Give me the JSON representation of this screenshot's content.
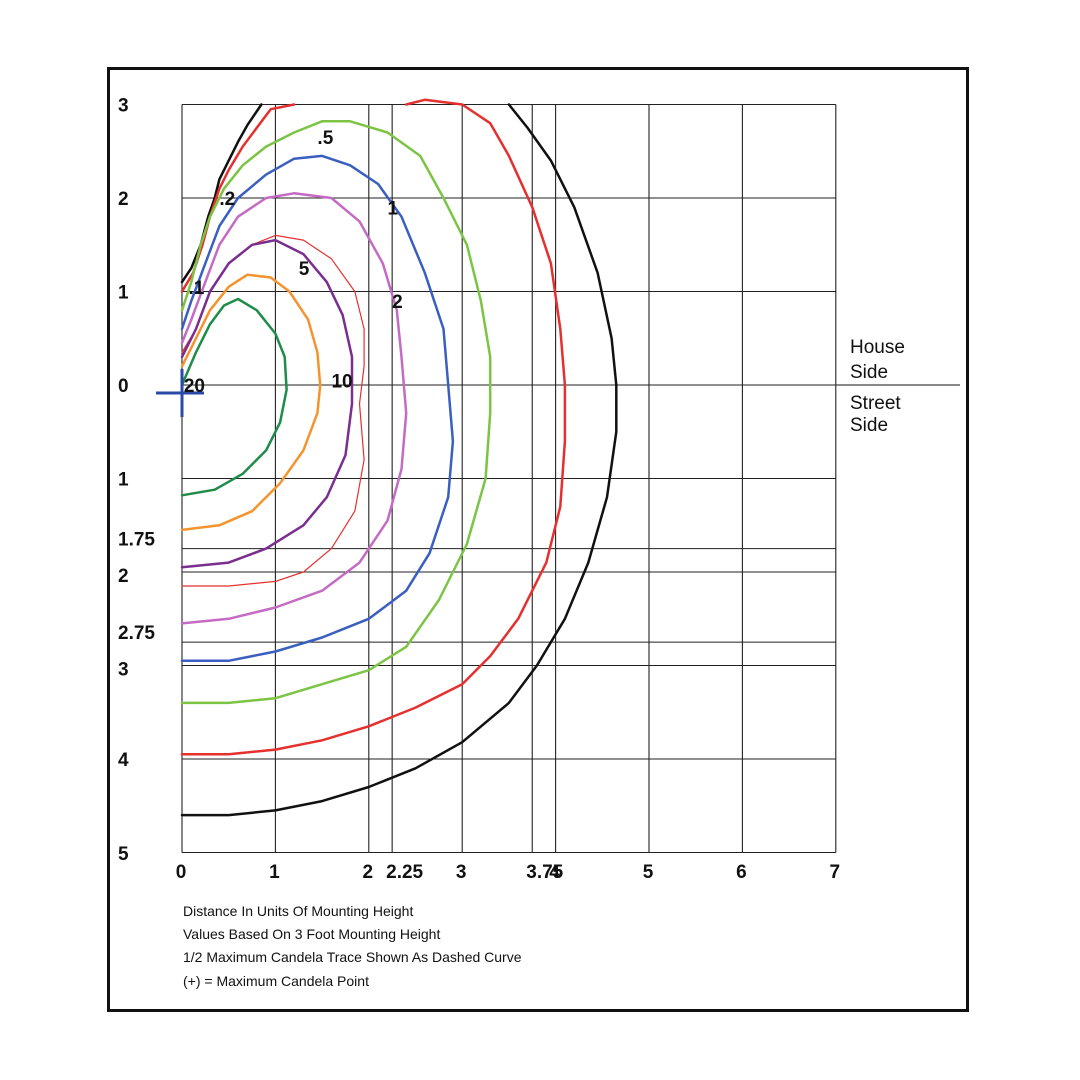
{
  "chart_data": {
    "type": "line",
    "notes": [
      "Distance In Units Of Mounting Height",
      "Values Based On 3 Foot Mounting Height",
      "1/2 Maximum Candela Trace Shown As Dashed Curve",
      "(+) = Maximum Candela Point"
    ],
    "side_labels": {
      "house_side": [
        "House",
        "Side"
      ],
      "street_side": [
        "Street",
        "Side"
      ]
    },
    "xlim": [
      0,
      7
    ],
    "ylim": [
      -5,
      3
    ],
    "x_ticks": [
      {
        "value": 0,
        "label": "0"
      },
      {
        "value": 1,
        "label": "1"
      },
      {
        "value": 2,
        "label": "2"
      },
      {
        "value": 2.25,
        "label": "2.25"
      },
      {
        "value": 3,
        "label": "3"
      },
      {
        "value": 3.75,
        "label": "3.75"
      },
      {
        "value": 4,
        "label": "4"
      },
      {
        "value": 5,
        "label": "5"
      },
      {
        "value": 6,
        "label": "6"
      },
      {
        "value": 7,
        "label": "7"
      }
    ],
    "y_ticks": [
      {
        "value": 3,
        "label": "3"
      },
      {
        "value": 2,
        "label": "2"
      },
      {
        "value": 1,
        "label": "1"
      },
      {
        "value": 0,
        "label": "0"
      },
      {
        "value": -1,
        "label": "1"
      },
      {
        "value": -1.75,
        "label": "1.75"
      },
      {
        "value": -2,
        "label": "2"
      },
      {
        "value": -2.75,
        "label": "2.75"
      },
      {
        "value": -3,
        "label": "3"
      },
      {
        "value": -4,
        "label": "4"
      },
      {
        "value": -5,
        "label": "5"
      }
    ],
    "grid": true,
    "max_point": {
      "x": 0,
      "y": 0,
      "marker": "+",
      "color": "#2b4aa8"
    },
    "series": [
      {
        "label": "",
        "color": "#111111",
        "width": 2.5,
        "points": [
          [
            0,
            -4.6
          ],
          [
            0.5,
            -4.6
          ],
          [
            1,
            -4.55
          ],
          [
            1.5,
            -4.45
          ],
          [
            2,
            -4.3
          ],
          [
            2.5,
            -4.1
          ],
          [
            3,
            -3.82
          ],
          [
            3.5,
            -3.4
          ],
          [
            3.8,
            -3.0
          ],
          [
            4.1,
            -2.5
          ],
          [
            4.35,
            -1.9
          ],
          [
            4.55,
            -1.2
          ],
          [
            4.65,
            -0.5
          ],
          [
            4.65,
            0.0
          ],
          [
            4.6,
            0.5
          ],
          [
            4.45,
            1.2
          ],
          [
            4.2,
            1.9
          ],
          [
            3.95,
            2.4
          ],
          [
            3.7,
            2.75
          ],
          [
            3.5,
            3.0
          ]
        ]
      },
      {
        "label": "",
        "color": "#111111",
        "width": 2.5,
        "points": [
          [
            0,
            1.1
          ],
          [
            0.1,
            1.25
          ],
          [
            0.2,
            1.5
          ],
          [
            0.28,
            1.8
          ],
          [
            0.35,
            2.0
          ],
          [
            0.4,
            2.2
          ],
          [
            0.5,
            2.4
          ],
          [
            0.6,
            2.6
          ],
          [
            0.7,
            2.78
          ],
          [
            0.85,
            3.0
          ]
        ]
      },
      {
        "label": "",
        "color": "#e53030",
        "width": 2.5,
        "points": [
          [
            0,
            -3.95
          ],
          [
            0.5,
            -3.95
          ],
          [
            1,
            -3.9
          ],
          [
            1.5,
            -3.8
          ],
          [
            2,
            -3.65
          ],
          [
            2.5,
            -3.45
          ],
          [
            3,
            -3.2
          ],
          [
            3.3,
            -2.9
          ],
          [
            3.6,
            -2.5
          ],
          [
            3.9,
            -1.9
          ],
          [
            4.05,
            -1.3
          ],
          [
            4.1,
            -0.6
          ],
          [
            4.1,
            0.0
          ],
          [
            4.05,
            0.6
          ],
          [
            3.95,
            1.3
          ],
          [
            3.75,
            1.9
          ],
          [
            3.5,
            2.45
          ],
          [
            3.3,
            2.8
          ],
          [
            3.0,
            3.0
          ],
          [
            2.6,
            3.05
          ],
          [
            2.4,
            3.0
          ]
        ]
      },
      {
        "label": "",
        "color": "#e53030",
        "width": 2.5,
        "points": [
          [
            0,
            1.0
          ],
          [
            0.12,
            1.2
          ],
          [
            0.22,
            1.5
          ],
          [
            0.3,
            1.8
          ],
          [
            0.4,
            2.1
          ],
          [
            0.5,
            2.3
          ],
          [
            0.65,
            2.55
          ],
          [
            0.8,
            2.75
          ],
          [
            0.95,
            2.95
          ],
          [
            1.2,
            3.0
          ]
        ]
      },
      {
        "label": ".5",
        "label_at": [
          1.45,
          2.65
        ],
        "color": "#7cc444",
        "width": 2.5,
        "points": [
          [
            0,
            -3.4
          ],
          [
            0.5,
            -3.4
          ],
          [
            1,
            -3.35
          ],
          [
            1.5,
            -3.2
          ],
          [
            2,
            -3.05
          ],
          [
            2.4,
            -2.8
          ],
          [
            2.75,
            -2.3
          ],
          [
            3.05,
            -1.7
          ],
          [
            3.25,
            -1.0
          ],
          [
            3.3,
            -0.3
          ],
          [
            3.3,
            0.3
          ],
          [
            3.2,
            0.9
          ],
          [
            3.05,
            1.5
          ],
          [
            2.8,
            2.0
          ],
          [
            2.55,
            2.45
          ],
          [
            2.2,
            2.7
          ],
          [
            1.8,
            2.82
          ],
          [
            1.5,
            2.82
          ],
          [
            1.2,
            2.7
          ],
          [
            0.9,
            2.55
          ],
          [
            0.65,
            2.35
          ],
          [
            0.45,
            2.1
          ],
          [
            0.3,
            1.8
          ],
          [
            0.2,
            1.5
          ],
          [
            0.1,
            1.1
          ],
          [
            0,
            0.8
          ]
        ]
      },
      {
        "label": "1",
        "label_at": [
          2.2,
          1.9
        ],
        "color": "#3a5fc0",
        "width": 2.5,
        "points": [
          [
            0,
            -2.95
          ],
          [
            0.5,
            -2.95
          ],
          [
            1,
            -2.85
          ],
          [
            1.5,
            -2.7
          ],
          [
            2,
            -2.5
          ],
          [
            2.4,
            -2.2
          ],
          [
            2.65,
            -1.8
          ],
          [
            2.85,
            -1.2
          ],
          [
            2.9,
            -0.6
          ],
          [
            2.85,
            0.0
          ],
          [
            2.8,
            0.6
          ],
          [
            2.6,
            1.2
          ],
          [
            2.35,
            1.8
          ],
          [
            2.1,
            2.15
          ],
          [
            1.8,
            2.35
          ],
          [
            1.5,
            2.45
          ],
          [
            1.2,
            2.42
          ],
          [
            0.9,
            2.25
          ],
          [
            0.6,
            2.0
          ],
          [
            0.4,
            1.7
          ],
          [
            0.25,
            1.3
          ],
          [
            0.1,
            0.9
          ],
          [
            0,
            0.6
          ]
        ]
      },
      {
        "label": "2",
        "label_at": [
          2.25,
          0.9
        ],
        "color": "#c46bc4",
        "width": 2.5,
        "points": [
          [
            0,
            -2.55
          ],
          [
            0.5,
            -2.5
          ],
          [
            1,
            -2.38
          ],
          [
            1.5,
            -2.2
          ],
          [
            1.9,
            -1.9
          ],
          [
            2.2,
            -1.45
          ],
          [
            2.35,
            -0.9
          ],
          [
            2.4,
            -0.3
          ],
          [
            2.35,
            0.3
          ],
          [
            2.3,
            0.8
          ],
          [
            2.15,
            1.3
          ],
          [
            1.9,
            1.75
          ],
          [
            1.6,
            2.0
          ],
          [
            1.2,
            2.05
          ],
          [
            0.9,
            2.0
          ],
          [
            0.6,
            1.8
          ],
          [
            0.4,
            1.5
          ],
          [
            0.25,
            1.1
          ],
          [
            0.1,
            0.7
          ],
          [
            0,
            0.45
          ]
        ]
      },
      {
        "label": "",
        "color": "#e53030",
        "width": 1.2,
        "points": [
          [
            0,
            -2.15
          ],
          [
            0.5,
            -2.15
          ],
          [
            1,
            -2.1
          ],
          [
            1.3,
            -2.0
          ],
          [
            1.6,
            -1.75
          ],
          [
            1.85,
            -1.35
          ],
          [
            1.95,
            -0.8
          ],
          [
            1.9,
            -0.2
          ],
          [
            1.95,
            0.2
          ],
          [
            1.95,
            0.6
          ],
          [
            1.85,
            1.0
          ],
          [
            1.6,
            1.35
          ],
          [
            1.3,
            1.55
          ],
          [
            1.0,
            1.6
          ],
          [
            0.75,
            1.5
          ],
          [
            0.5,
            1.3
          ],
          [
            0.3,
            1.0
          ],
          [
            0.15,
            0.6
          ],
          [
            0,
            0.35
          ]
        ]
      },
      {
        "label": "5",
        "label_at": [
          1.25,
          1.25
        ],
        "color": "#7a2f8f",
        "width": 2.5,
        "points": [
          [
            0,
            -1.95
          ],
          [
            0.5,
            -1.9
          ],
          [
            0.9,
            -1.75
          ],
          [
            1.3,
            -1.5
          ],
          [
            1.55,
            -1.2
          ],
          [
            1.75,
            -0.75
          ],
          [
            1.82,
            -0.2
          ],
          [
            1.82,
            0.3
          ],
          [
            1.72,
            0.75
          ],
          [
            1.55,
            1.1
          ],
          [
            1.3,
            1.4
          ],
          [
            1.0,
            1.55
          ],
          [
            0.75,
            1.5
          ],
          [
            0.5,
            1.3
          ],
          [
            0.3,
            1.0
          ],
          [
            0.15,
            0.6
          ],
          [
            0,
            0.3
          ]
        ]
      },
      {
        "label": "10",
        "label_at": [
          1.6,
          0.05
        ],
        "color": "#f5932e",
        "width": 2.5,
        "points": [
          [
            0,
            -1.55
          ],
          [
            0.4,
            -1.5
          ],
          [
            0.75,
            -1.35
          ],
          [
            1.05,
            -1.05
          ],
          [
            1.3,
            -0.7
          ],
          [
            1.45,
            -0.3
          ],
          [
            1.48,
            0.0
          ],
          [
            1.45,
            0.35
          ],
          [
            1.35,
            0.7
          ],
          [
            1.15,
            1.0
          ],
          [
            0.95,
            1.15
          ],
          [
            0.7,
            1.18
          ],
          [
            0.5,
            1.05
          ],
          [
            0.3,
            0.8
          ],
          [
            0.15,
            0.5
          ],
          [
            0,
            0.2
          ]
        ]
      },
      {
        "label": "",
        "color": "#1f8c4a",
        "width": 2.5,
        "points": [
          [
            0,
            -1.18
          ],
          [
            0.35,
            -1.12
          ],
          [
            0.65,
            -0.95
          ],
          [
            0.9,
            -0.7
          ],
          [
            1.05,
            -0.4
          ],
          [
            1.12,
            -0.05
          ],
          [
            1.1,
            0.3
          ],
          [
            1.0,
            0.55
          ],
          [
            0.8,
            0.8
          ],
          [
            0.6,
            0.92
          ],
          [
            0.45,
            0.85
          ],
          [
            0.3,
            0.65
          ],
          [
            0.15,
            0.35
          ],
          [
            0,
            0.0
          ]
        ]
      }
    ],
    "extra_labels": [
      {
        "text": ".1",
        "at": [
          0.07,
          1.05
        ]
      },
      {
        "text": ".2",
        "at": [
          0.4,
          2.0
        ]
      },
      {
        "text": "20",
        "at": [
          0.02,
          0.0
        ]
      }
    ]
  }
}
